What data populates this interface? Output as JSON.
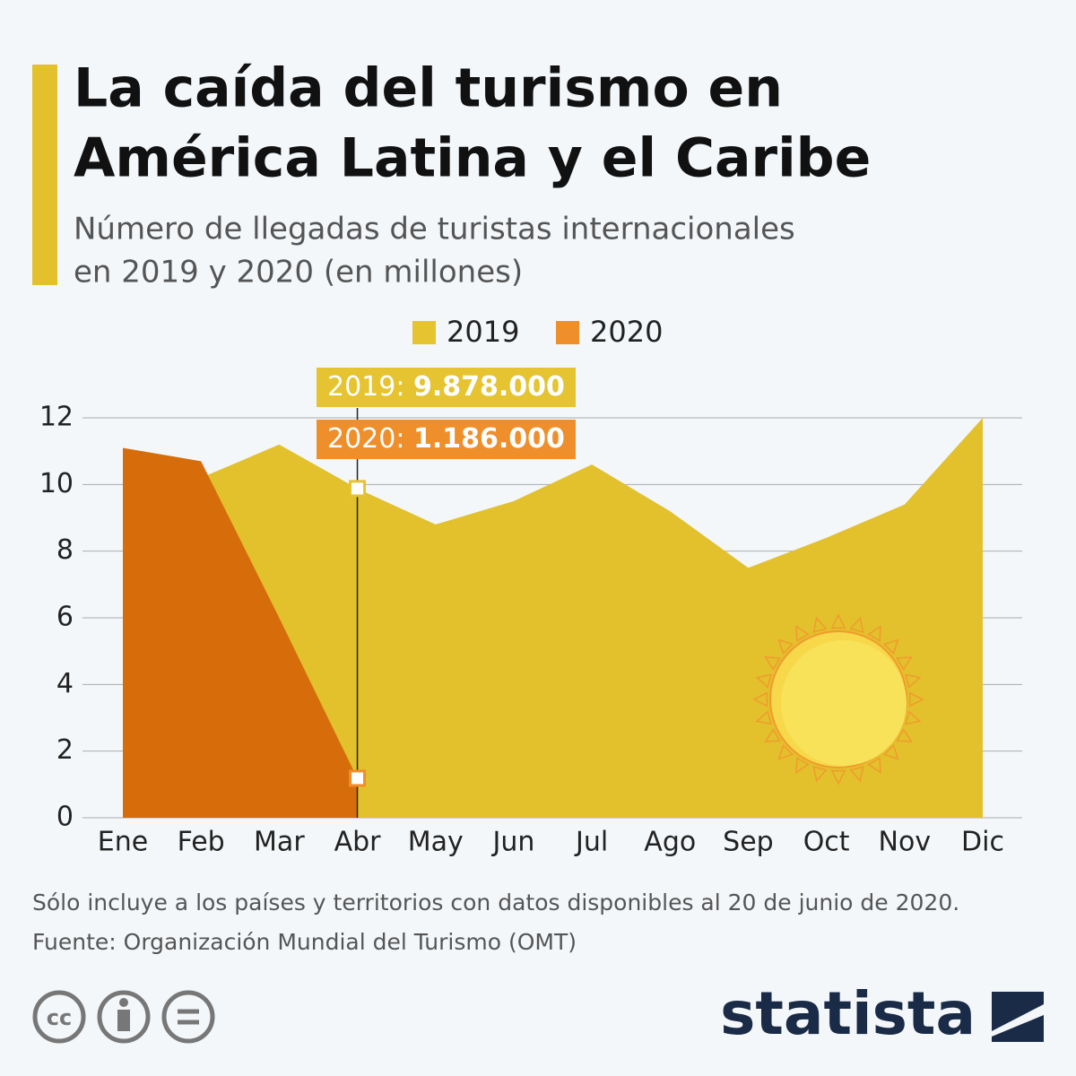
{
  "chart_data": {
    "type": "area",
    "title": [
      "La caída del turismo en",
      "América Latina y el Caribe"
    ],
    "subtitle": [
      "Número de llegadas de turistas internacionales",
      "en 2019 y 2020 (en millones)"
    ],
    "categories": [
      "Ene",
      "Feb",
      "Mar",
      "Abr",
      "May",
      "Jun",
      "Jul",
      "Ago",
      "Sep",
      "Oct",
      "Nov",
      "Dic"
    ],
    "series": [
      {
        "name": "2019",
        "color": "#e2c12c",
        "legend_color": "#e5c331",
        "values": [
          11.1,
          10.2,
          11.2,
          9.878,
          8.8,
          9.5,
          10.6,
          9.2,
          7.5,
          8.4,
          9.4,
          12.0
        ],
        "value_labels": [
          null,
          null,
          null,
          "9.878.000",
          null,
          null,
          null,
          null,
          null,
          null,
          null,
          null
        ]
      },
      {
        "name": "2020",
        "color": "#d76d0a",
        "legend_color": "#ee8f2c",
        "values": [
          11.1,
          10.7,
          6.0,
          1.186,
          null,
          null,
          null,
          null,
          null,
          null,
          null,
          null
        ],
        "value_labels": [
          null,
          null,
          null,
          "1.186.000",
          null,
          null,
          null,
          null,
          null,
          null,
          null,
          null
        ]
      }
    ],
    "highlight_index": 3,
    "ylim": [
      0,
      12
    ],
    "yticks": [
      0,
      2,
      4,
      6,
      8,
      10,
      12
    ],
    "grid": true,
    "legend": "top",
    "notes": [
      "Sólo incluye a los países y territorios con datos disponibles al 20 de junio de 2020.",
      "Fuente: Organización Mundial del Turismo (OMT)"
    ],
    "brand": "statista",
    "license": "cc"
  }
}
